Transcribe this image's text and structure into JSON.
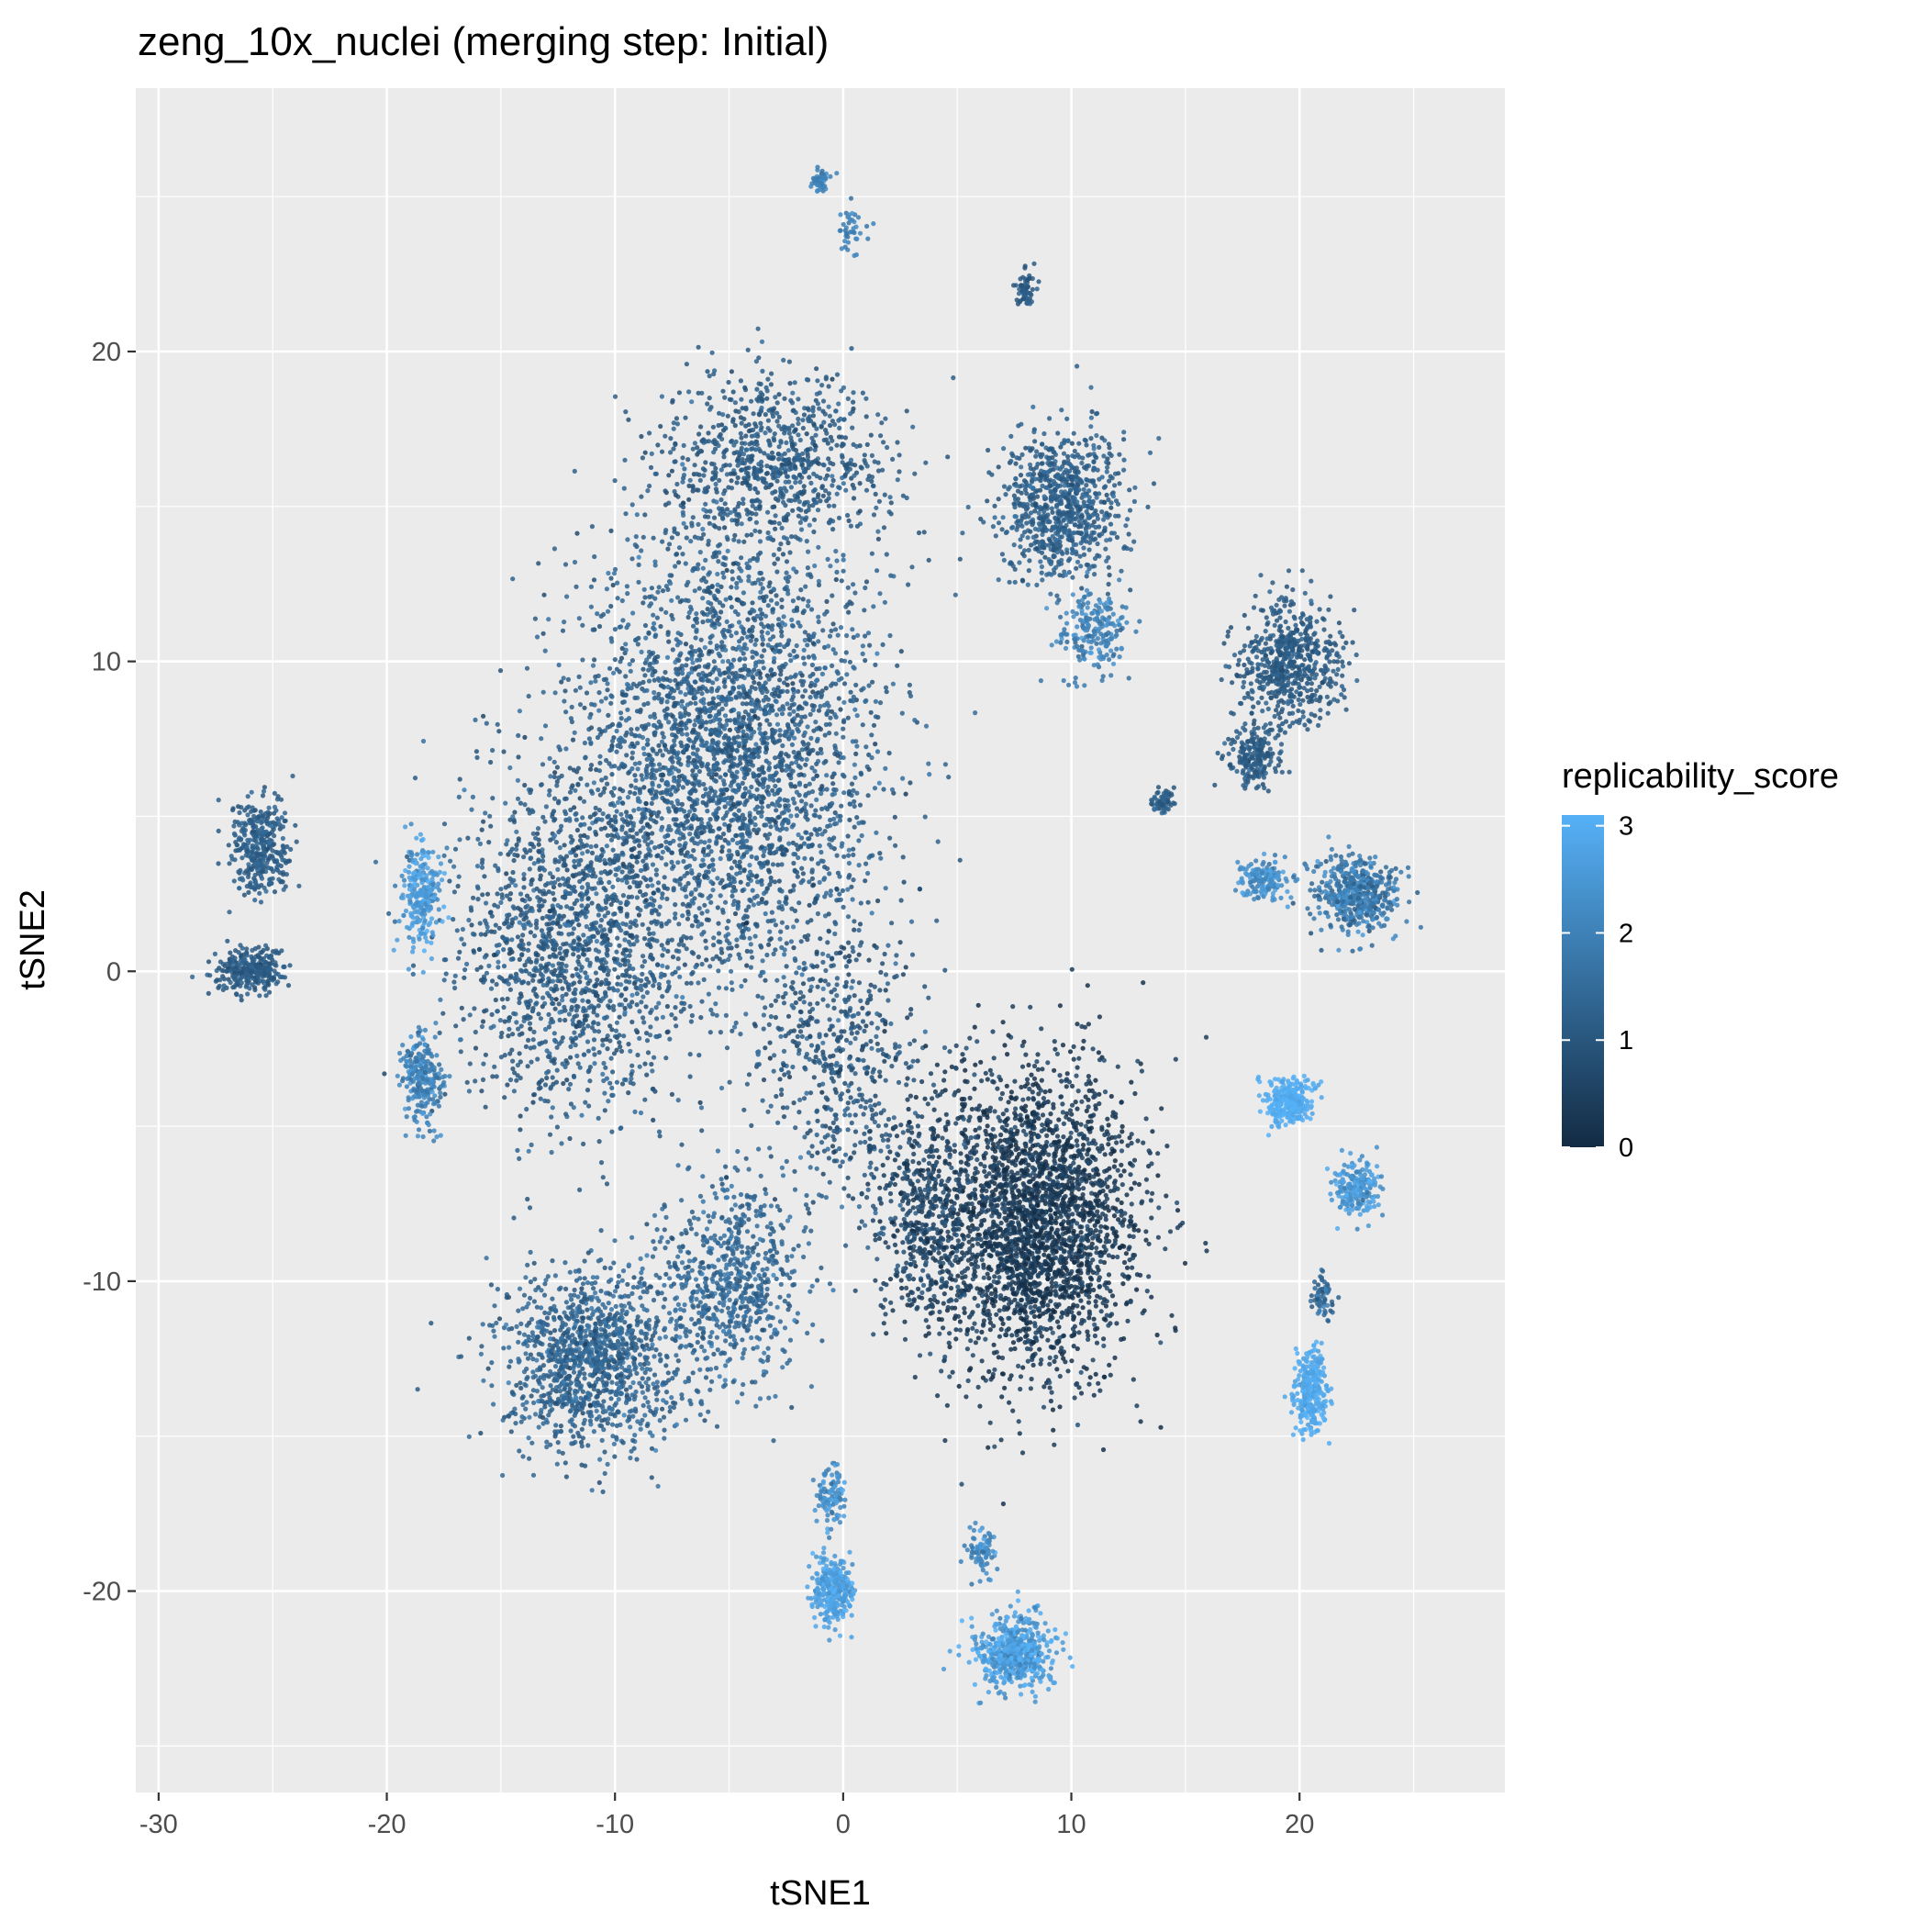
{
  "chart_data": {
    "type": "scatter",
    "title": "zeng_10x_nuclei (merging step: Initial)",
    "xlabel": "tSNE1",
    "ylabel": "tSNE2",
    "xlim": [
      -31,
      29
    ],
    "ylim": [
      -26.5,
      28.5
    ],
    "x_ticks": [
      -30,
      -20,
      -10,
      0,
      10,
      20
    ],
    "x_tick_labels": [
      "-30",
      "-20",
      "-10",
      "0",
      "10",
      "20"
    ],
    "y_ticks": [
      -20,
      -10,
      0,
      10,
      20
    ],
    "y_tick_labels": [
      "-20",
      "-10",
      "0",
      "10",
      "20"
    ],
    "grid": true,
    "panel_background": "#ebebeb",
    "color_variable": "replicability_score",
    "color_scale": {
      "min": 0,
      "max": 3.1,
      "low": "#132b43",
      "high": "#56b1f7"
    },
    "legend": {
      "title": "replicability_score",
      "position": "right",
      "ticks": [
        0,
        1,
        2,
        3
      ],
      "tick_labels": [
        "0",
        "1",
        "2",
        "3"
      ]
    },
    "clusters": [
      {
        "x": -5,
        "y": 7,
        "sx": 6,
        "sy": 7,
        "n": 3200,
        "score": 1.2,
        "spread": 0.25
      },
      {
        "x": -12,
        "y": 1,
        "sx": 4.5,
        "sy": 5,
        "n": 1500,
        "score": 1.1,
        "spread": 0.25
      },
      {
        "x": -3,
        "y": 16.5,
        "sx": 4.5,
        "sy": 2.5,
        "n": 800,
        "score": 1.1,
        "spread": 0.2
      },
      {
        "x": -11,
        "y": -12.5,
        "sx": 3.5,
        "sy": 2.5,
        "n": 1200,
        "score": 1.3,
        "spread": 0.25
      },
      {
        "x": -5,
        "y": -10,
        "sx": 3,
        "sy": 3,
        "n": 700,
        "score": 1.4,
        "spread": 0.25
      },
      {
        "x": 0,
        "y": -3,
        "sx": 3,
        "sy": 4,
        "n": 500,
        "score": 1.0,
        "spread": 0.3
      },
      {
        "x": 8.5,
        "y": -8,
        "sx": 4,
        "sy": 4.5,
        "n": 2600,
        "score": 0.3,
        "spread": 0.25
      },
      {
        "x": 3.5,
        "y": -8,
        "sx": 2,
        "sy": 3.5,
        "n": 500,
        "score": 0.6,
        "spread": 0.3
      },
      {
        "x": -18.5,
        "y": 2.5,
        "sx": 0.8,
        "sy": 1.5,
        "n": 250,
        "score": 2.6,
        "spread": 0.3
      },
      {
        "x": -18.5,
        "y": -3.5,
        "sx": 0.8,
        "sy": 1.4,
        "n": 250,
        "score": 2.0,
        "spread": 0.3
      },
      {
        "x": -25.5,
        "y": 4,
        "sx": 1.2,
        "sy": 1.5,
        "n": 350,
        "score": 1.2,
        "spread": 0.15
      },
      {
        "x": -26,
        "y": 0,
        "sx": 1.3,
        "sy": 0.6,
        "n": 300,
        "score": 1.1,
        "spread": 0.15
      },
      {
        "x": 9.5,
        "y": 15,
        "sx": 2.4,
        "sy": 2.2,
        "n": 800,
        "score": 1.2,
        "spread": 0.2
      },
      {
        "x": 11,
        "y": 11,
        "sx": 1.5,
        "sy": 1.2,
        "n": 200,
        "score": 2.0,
        "spread": 0.3
      },
      {
        "x": 19.5,
        "y": 10,
        "sx": 2,
        "sy": 1.8,
        "n": 600,
        "score": 1.1,
        "spread": 0.15
      },
      {
        "x": 18,
        "y": 7,
        "sx": 1,
        "sy": 1,
        "n": 200,
        "score": 1.1,
        "spread": 0.15
      },
      {
        "x": 22.5,
        "y": 2.5,
        "sx": 1.6,
        "sy": 1.1,
        "n": 500,
        "score": 1.8,
        "spread": 0.35
      },
      {
        "x": 18.5,
        "y": 3,
        "sx": 1,
        "sy": 0.6,
        "n": 150,
        "score": 2.3,
        "spread": 0.3
      },
      {
        "x": 19.5,
        "y": -4.2,
        "sx": 0.9,
        "sy": 0.7,
        "n": 300,
        "score": 3.0,
        "spread": 0.15
      },
      {
        "x": 22.5,
        "y": -7,
        "sx": 1,
        "sy": 0.8,
        "n": 200,
        "score": 2.5,
        "spread": 0.3
      },
      {
        "x": 20.5,
        "y": -13.5,
        "sx": 0.6,
        "sy": 1.3,
        "n": 300,
        "score": 2.9,
        "spread": 0.15
      },
      {
        "x": 21,
        "y": -10.5,
        "sx": 0.4,
        "sy": 0.7,
        "n": 60,
        "score": 1.4,
        "spread": 0.3
      },
      {
        "x": 7.5,
        "y": -22,
        "sx": 1.5,
        "sy": 1,
        "n": 600,
        "score": 2.7,
        "spread": 0.4
      },
      {
        "x": 6,
        "y": -18.8,
        "sx": 0.6,
        "sy": 0.8,
        "n": 80,
        "score": 2.2,
        "spread": 0.3
      },
      {
        "x": -0.5,
        "y": -20,
        "sx": 0.8,
        "sy": 1,
        "n": 300,
        "score": 2.7,
        "spread": 0.2
      },
      {
        "x": -0.5,
        "y": -17,
        "sx": 0.6,
        "sy": 1,
        "n": 100,
        "score": 2.3,
        "spread": 0.3
      },
      {
        "x": -1,
        "y": 25.5,
        "sx": 0.3,
        "sy": 0.3,
        "n": 60,
        "score": 2.0,
        "spread": 0.15
      },
      {
        "x": 0.5,
        "y": 24,
        "sx": 0.6,
        "sy": 0.6,
        "n": 40,
        "score": 2.0,
        "spread": 0.2
      },
      {
        "x": 8,
        "y": 22,
        "sx": 0.4,
        "sy": 0.5,
        "n": 60,
        "score": 1.1,
        "spread": 0.15
      },
      {
        "x": 14,
        "y": 5.5,
        "sx": 0.5,
        "sy": 0.4,
        "n": 60,
        "score": 1.2,
        "spread": 0.15
      }
    ]
  }
}
